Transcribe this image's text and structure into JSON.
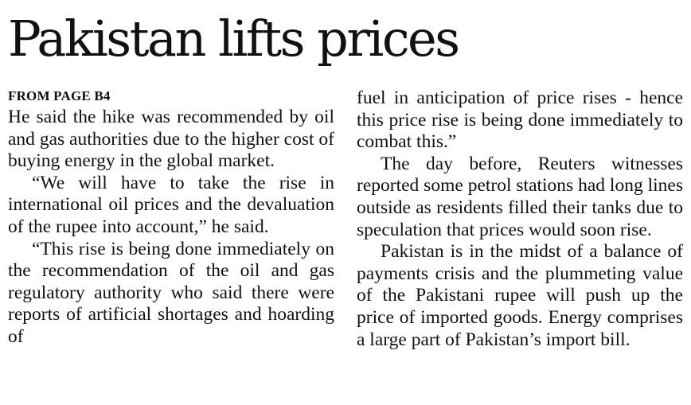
{
  "article": {
    "headline": "Pakistan lifts prices",
    "dateline": "FROM PAGE B4",
    "left_column": [
      "He said the hike was recommended by oil and gas authorities due to the higher cost of buying energy in the global market.",
      "“We will have to take the rise in international oil prices and the devaluation of the rupee into account,” he said.",
      "“This rise is being done immediately on the recommendation of the oil and gas regulatory authority who said there were reports of artificial shortages and hoarding of"
    ],
    "right_column": [
      "fuel in anticipation of price rises - hence this price rise is being done immediately to combat this.”",
      "The day before, Reuters witnesses reported some petrol stations had long lines outside as residents filled their tanks due to speculation that prices would soon rise.",
      "Pakistan is in the midst of a balance of payments crisis and the plummeting value of the Pakistani rupee will push up the price of imported goods. Energy comprises a large part of Pakistan’s import bill."
    ]
  }
}
